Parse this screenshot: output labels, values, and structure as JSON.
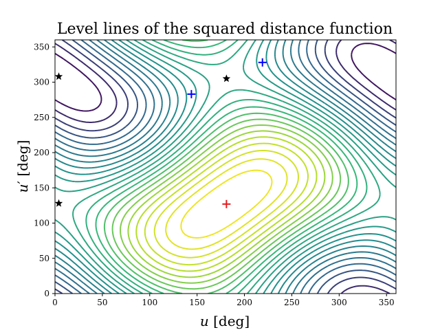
{
  "chart_data": {
    "type": "contour",
    "title": "Level lines of the squared distance function",
    "xlabel": "u [deg]",
    "ylabel": "u′ [deg]",
    "xlim": [
      0,
      360
    ],
    "ylim": [
      0,
      360
    ],
    "xticks": [
      "0",
      "50",
      "100",
      "150",
      "200",
      "250",
      "300",
      "350"
    ],
    "yticks": [
      "0",
      "50",
      "100",
      "150",
      "200",
      "250",
      "300",
      "350"
    ],
    "colormap": [
      "#440154",
      "#31688e",
      "#21918c",
      "#35b779",
      "#b5de2b",
      "#fde725"
    ],
    "markers": [
      {
        "name": "minimum",
        "symbol": "+",
        "color": "#e41a1c",
        "x": 181,
        "y": 127
      },
      {
        "name": "saddle-1",
        "symbol": "+",
        "color": "#0000ff",
        "x": 144,
        "y": 283
      },
      {
        "name": "saddle-2",
        "symbol": "+",
        "color": "#0000ff",
        "x": 219,
        "y": 328
      },
      {
        "name": "star-1",
        "symbol": "star",
        "color": "#000000",
        "x": 181,
        "y": 305
      },
      {
        "name": "star-2",
        "symbol": "star",
        "color": "#000000",
        "x": 4,
        "y": 308
      },
      {
        "name": "star-3",
        "symbol": "star",
        "color": "#000000",
        "x": 4,
        "y": 128
      }
    ]
  }
}
